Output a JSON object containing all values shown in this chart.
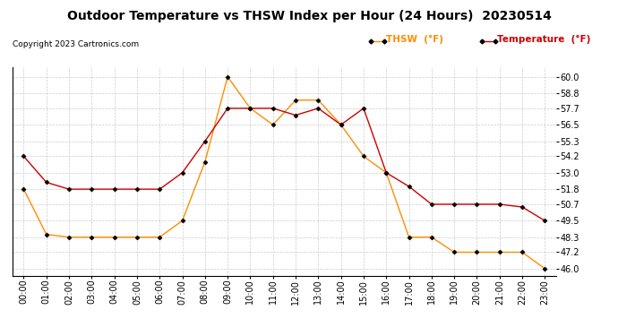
{
  "title": "Outdoor Temperature vs THSW Index per Hour (24 Hours)  20230514",
  "copyright": "Copyright 2023 Cartronics.com",
  "legend_thsw": "THSW  (°F)",
  "legend_temp": "Temperature  (°F)",
  "hours": [
    "00:00",
    "01:00",
    "02:00",
    "03:00",
    "04:00",
    "05:00",
    "06:00",
    "07:00",
    "08:00",
    "09:00",
    "10:00",
    "11:00",
    "12:00",
    "13:00",
    "14:00",
    "15:00",
    "16:00",
    "17:00",
    "18:00",
    "19:00",
    "20:00",
    "21:00",
    "22:00",
    "23:00"
  ],
  "temperature": [
    54.2,
    52.3,
    51.8,
    51.8,
    51.8,
    51.8,
    51.8,
    53.0,
    55.3,
    57.7,
    57.7,
    57.7,
    57.2,
    57.7,
    56.5,
    57.7,
    53.0,
    52.0,
    50.7,
    50.7,
    50.7,
    50.7,
    50.5,
    49.5
  ],
  "thsw": [
    51.8,
    48.5,
    48.3,
    48.3,
    48.3,
    48.3,
    48.3,
    49.5,
    53.8,
    60.0,
    57.7,
    56.5,
    58.3,
    58.3,
    56.5,
    54.2,
    53.0,
    48.3,
    48.3,
    47.2,
    47.2,
    47.2,
    47.2,
    46.0
  ],
  "thsw_color": "#FF8C00",
  "temp_color": "#CC0000",
  "ylim_min": 45.5,
  "ylim_max": 60.7,
  "yticks": [
    46.0,
    47.2,
    48.3,
    49.5,
    50.7,
    51.8,
    53.0,
    54.2,
    55.3,
    56.5,
    57.7,
    58.8,
    60.0
  ],
  "bg_color": "#FFFFFF",
  "grid_color": "#CCCCCC",
  "title_fontsize": 10,
  "axis_fontsize": 7,
  "copyright_fontsize": 6.5,
  "legend_fontsize": 7.5,
  "marker": "D",
  "marker_size": 2.5
}
